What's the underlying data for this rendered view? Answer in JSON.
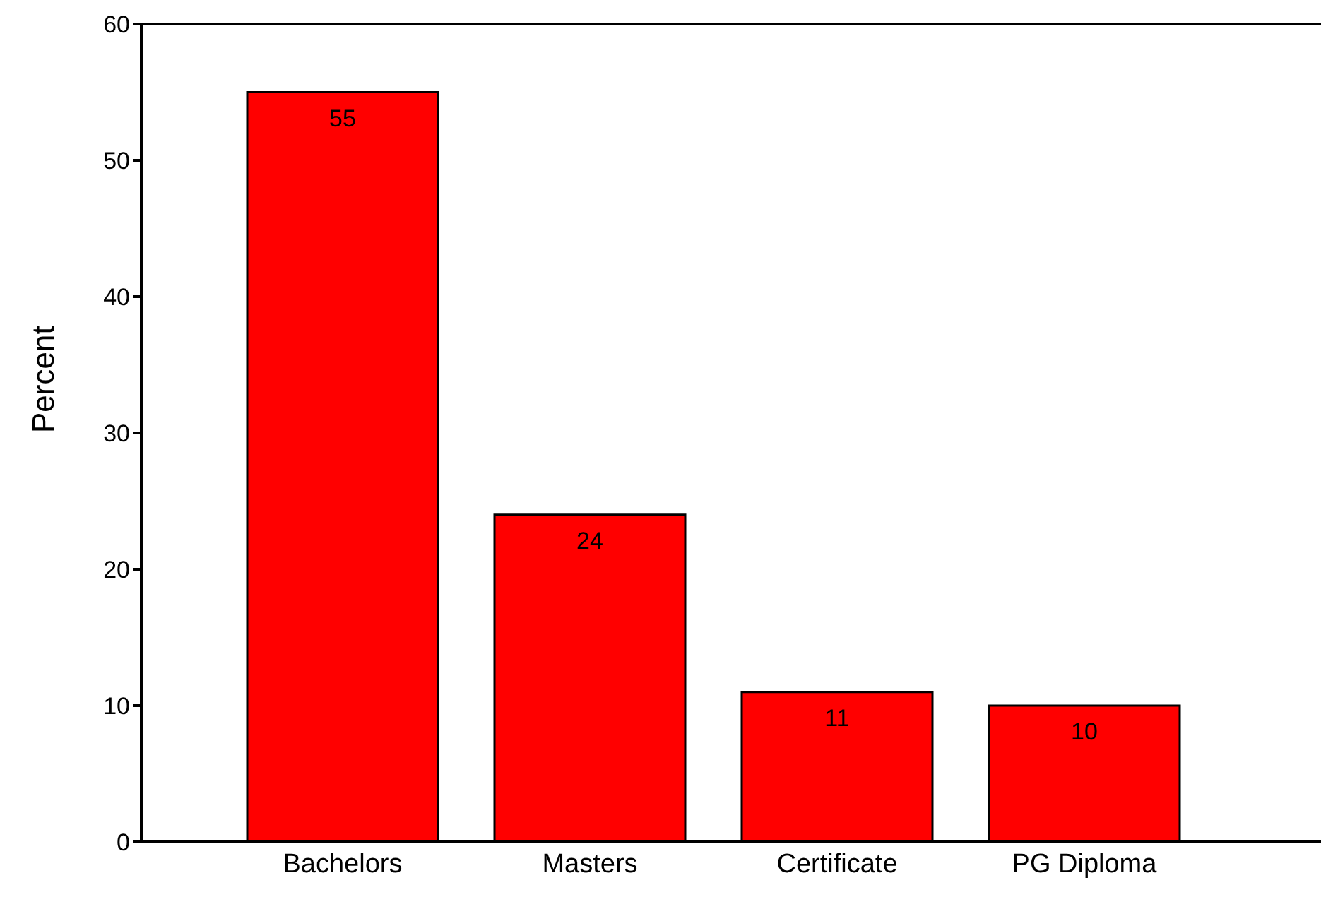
{
  "chart_data": {
    "type": "bar",
    "ylabel": "Percent",
    "categories": [
      "Bachelors",
      "Masters",
      "Certificate",
      "PG Diploma"
    ],
    "values": [
      55,
      24,
      11,
      10
    ],
    "color": "#ff0000",
    "ylim": [
      0,
      60
    ],
    "yticks": [
      0,
      10,
      20,
      30,
      40,
      50,
      60
    ],
    "data_labels": true,
    "grid": false
  }
}
